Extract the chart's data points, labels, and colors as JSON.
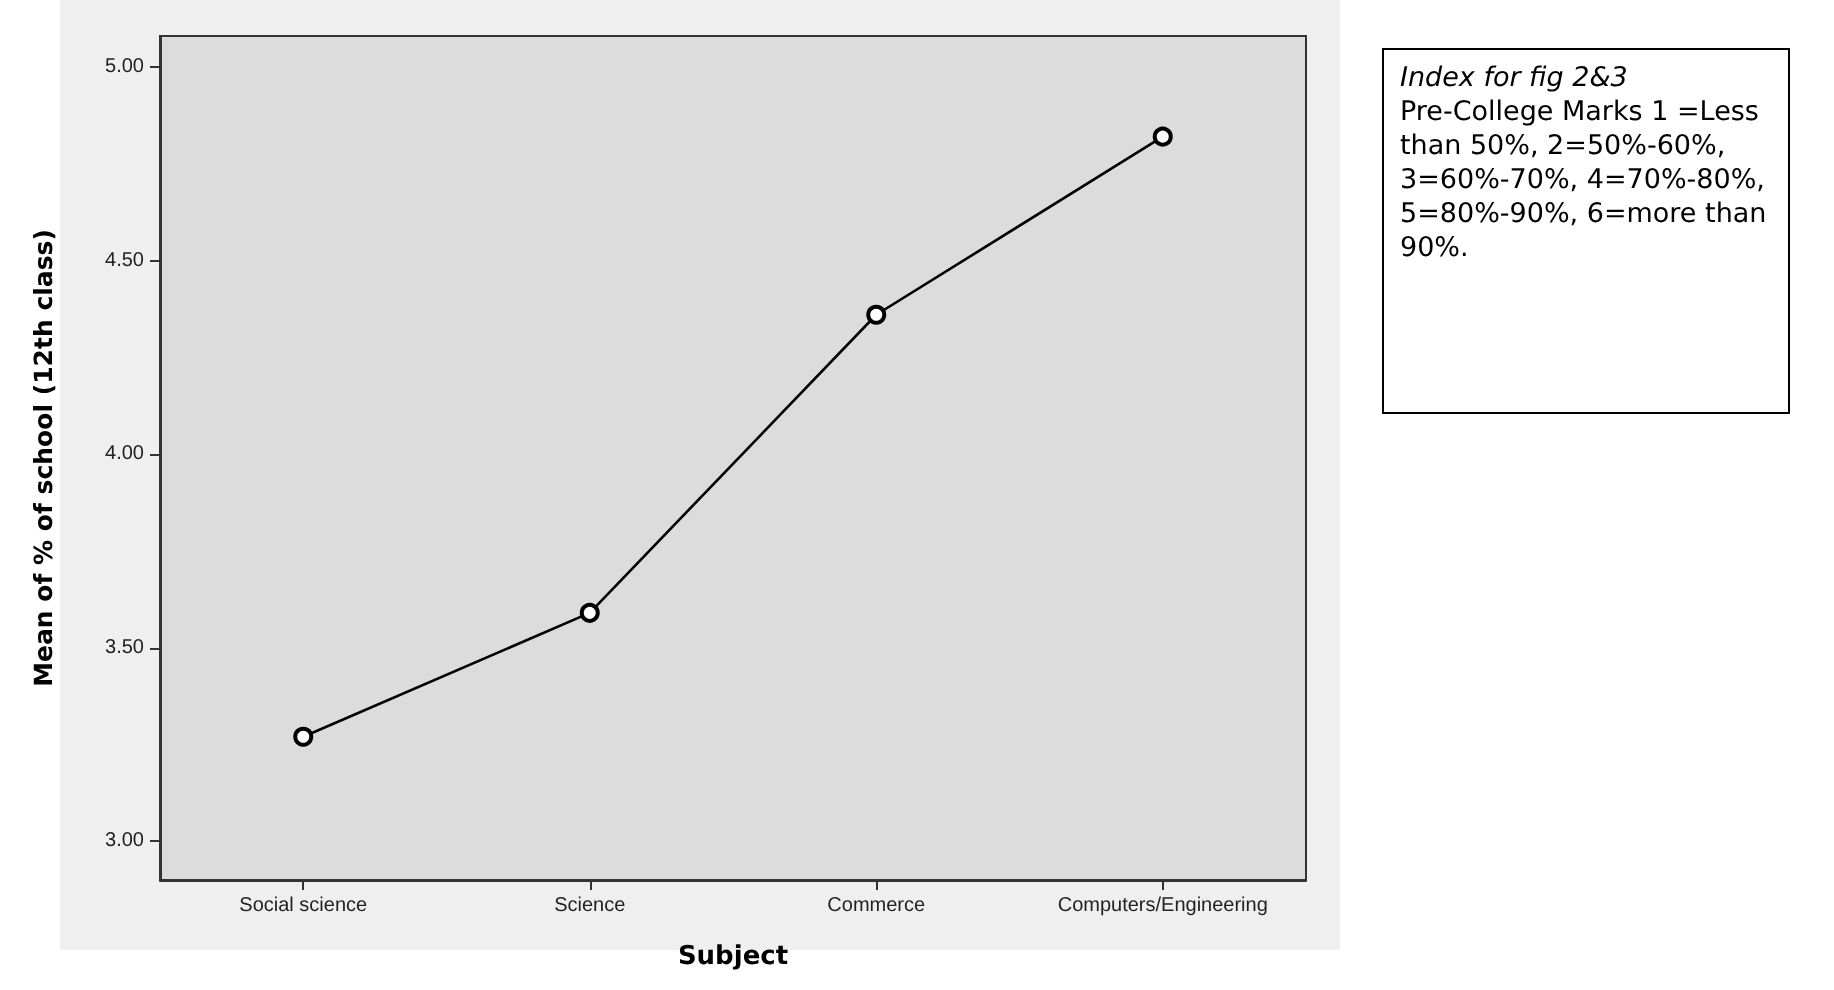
{
  "chart_data": {
    "type": "line",
    "xlabel": "Subject",
    "ylabel": "Mean of % of school (12th class)",
    "categories": [
      "Social science",
      "Science",
      "Commerce",
      "Computers/Engineering"
    ],
    "series": [
      {
        "color": "#000000",
        "values": [
          3.27,
          3.59,
          4.36,
          4.82
        ]
      }
    ],
    "ylim": [
      2.9,
      5.08
    ],
    "yticks": [
      {
        "value": 3,
        "label": "3.00"
      },
      {
        "value": 3.5,
        "label": "3.50"
      },
      {
        "value": 4,
        "label": "4.00"
      },
      {
        "value": 4.5,
        "label": "4.50"
      },
      {
        "value": 5,
        "label": "5.00"
      }
    ],
    "grid": false,
    "marker": "circle",
    "line_style": "solid",
    "annotations": [
      "Index for fig 2&3",
      "Pre-College Marks 1 =Less than 50%, 2=50%-60%, 3=60%-70%, 4=70%-80%, 5=80%-90%, 6=more than 90%."
    ]
  }
}
